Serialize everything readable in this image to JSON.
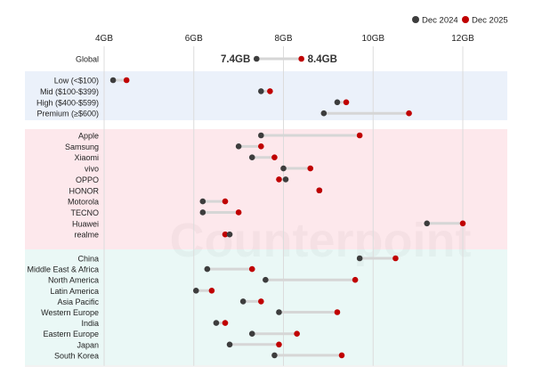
{
  "chart_data": {
    "type": "dumbbell",
    "xlim": [
      4,
      12
    ],
    "x_ticks": [
      "4GB",
      "6GB",
      "8GB",
      "10GB",
      "12GB"
    ],
    "x_tick_values": [
      4,
      6,
      8,
      10,
      12
    ],
    "grid": true,
    "legend_position": "top-right",
    "series": [
      {
        "name": "Dec 2024",
        "color": "#3d3d3d"
      },
      {
        "name": "Dec 2025",
        "color": "#c00000"
      }
    ],
    "watermark": "Counterpoint",
    "groups": [
      {
        "band_color": "#ffffff",
        "rows": [
          {
            "label": "Global",
            "dec2024": 7.4,
            "dec2025": 8.4,
            "value_labels": [
              "7.4GB",
              "8.4GB"
            ]
          }
        ]
      },
      {
        "band_color": "#ebf1fa",
        "rows": [
          {
            "label": "Low (<$100)",
            "dec2024": 4.2,
            "dec2025": 4.5
          },
          {
            "label": "Mid ($100-$399)",
            "dec2024": 7.5,
            "dec2025": 7.7
          },
          {
            "label": "High ($400-$599)",
            "dec2024": 9.2,
            "dec2025": 9.4
          },
          {
            "label": "Premium (≥$600)",
            "dec2024": 8.9,
            "dec2025": 10.8
          }
        ]
      },
      {
        "band_color": "#fde8ec",
        "rows": [
          {
            "label": "Apple",
            "dec2024": 7.5,
            "dec2025": 9.7
          },
          {
            "label": "Samsung",
            "dec2024": 7.0,
            "dec2025": 7.5
          },
          {
            "label": "Xiaomi",
            "dec2024": 7.3,
            "dec2025": 7.8
          },
          {
            "label": "vivo",
            "dec2024": 8.0,
            "dec2025": 8.6
          },
          {
            "label": "OPPO",
            "dec2024": 8.05,
            "dec2025": 7.9
          },
          {
            "label": "HONOR",
            "dec2024": 8.8,
            "dec2025": 8.8
          },
          {
            "label": "Motorola",
            "dec2024": 6.2,
            "dec2025": 6.7
          },
          {
            "label": "TECNO",
            "dec2024": 6.2,
            "dec2025": 7.0
          },
          {
            "label": "Huawei",
            "dec2024": 11.2,
            "dec2025": 12.0
          },
          {
            "label": "realme",
            "dec2024": 6.8,
            "dec2025": 6.7
          }
        ]
      },
      {
        "band_color": "#eaf8f6",
        "rows": [
          {
            "label": "China",
            "dec2024": 9.7,
            "dec2025": 10.5
          },
          {
            "label": "Middle East & Africa",
            "dec2024": 6.3,
            "dec2025": 7.3
          },
          {
            "label": "North America",
            "dec2024": 7.6,
            "dec2025": 9.6
          },
          {
            "label": "Latin America",
            "dec2024": 6.05,
            "dec2025": 6.4
          },
          {
            "label": "Asia Pacific",
            "dec2024": 7.1,
            "dec2025": 7.5
          },
          {
            "label": "Western Europe",
            "dec2024": 7.9,
            "dec2025": 9.2
          },
          {
            "label": "India",
            "dec2024": 6.5,
            "dec2025": 6.7
          },
          {
            "label": "Eastern Europe",
            "dec2024": 7.3,
            "dec2025": 8.3
          },
          {
            "label": "Japan",
            "dec2024": 6.8,
            "dec2025": 7.9
          },
          {
            "label": "South Korea",
            "dec2024": 7.8,
            "dec2025": 9.3
          }
        ]
      }
    ]
  }
}
